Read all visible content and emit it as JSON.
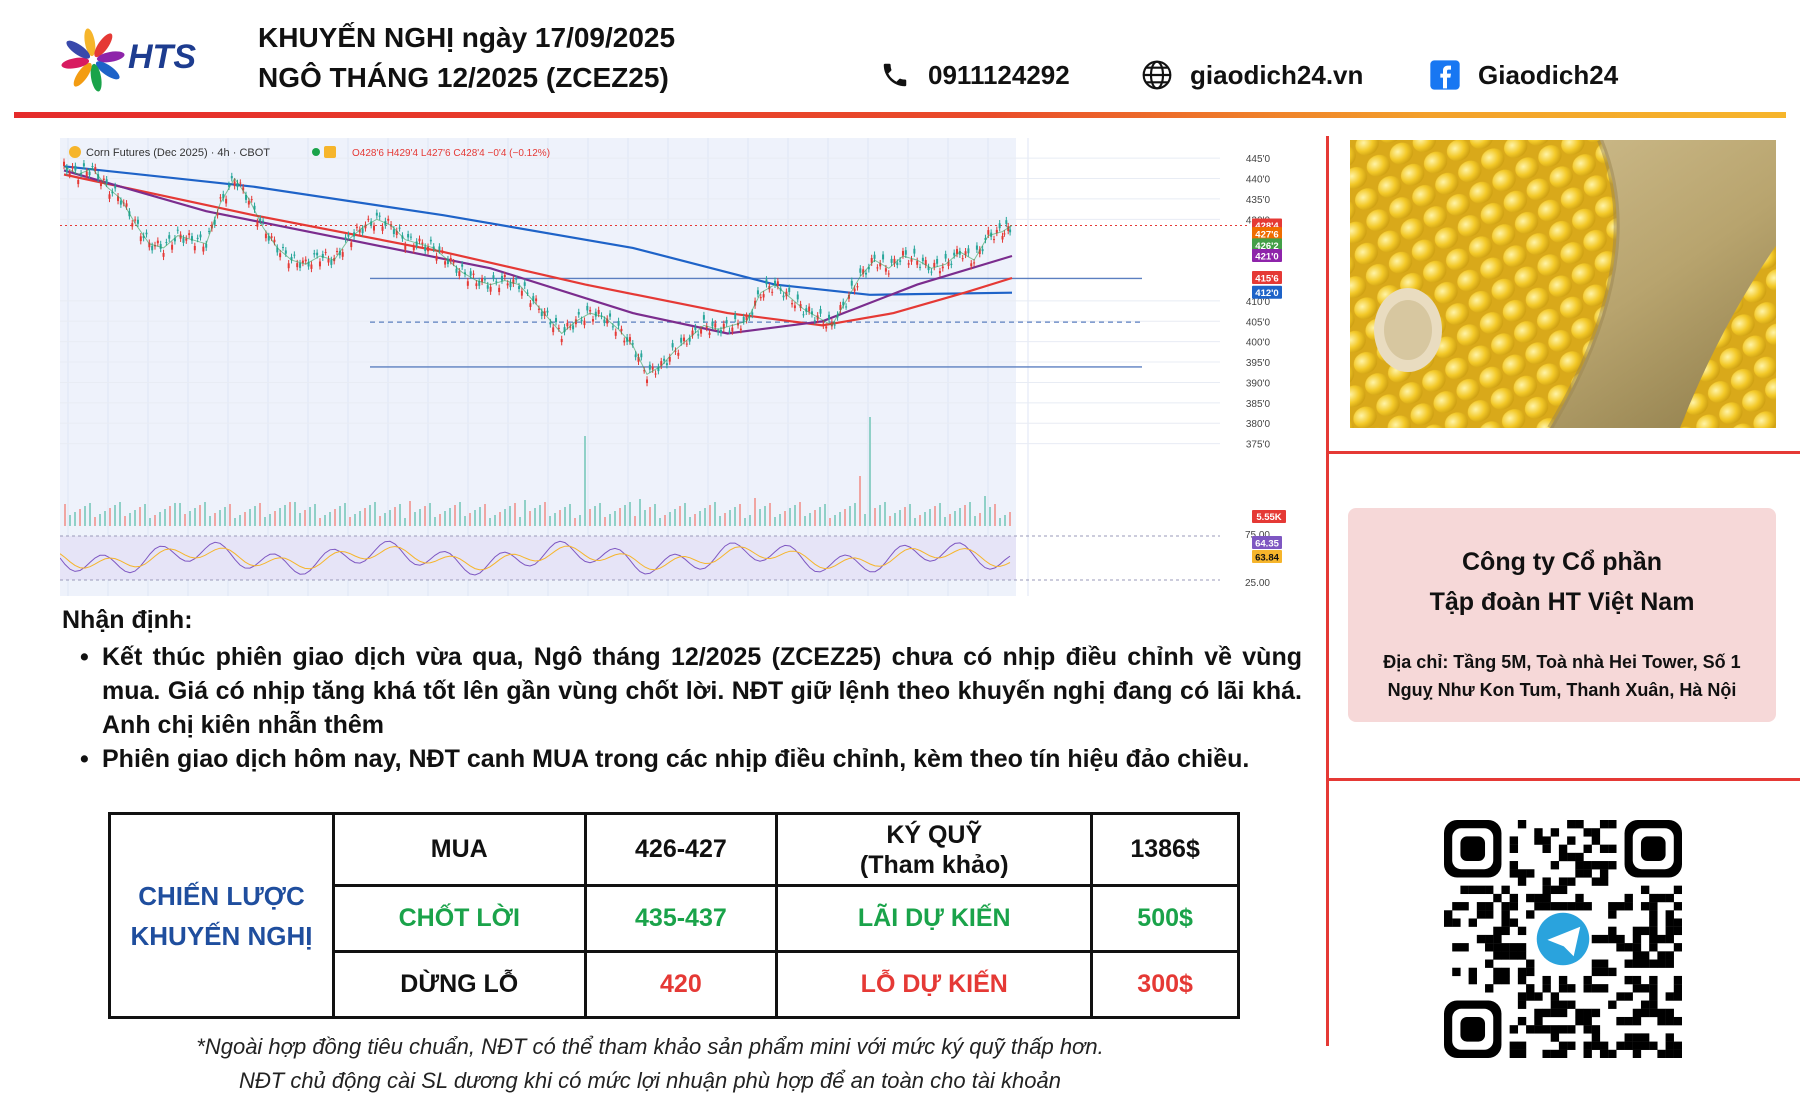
{
  "header": {
    "logo_text": "HTS",
    "title_line1": "KHUYẾN NGHỊ ngày 17/09/2025",
    "title_line2": "NGÔ THÁNG 12/2025 (ZCEZ25)",
    "phone": "0911124292",
    "website": "giaodich24.vn",
    "facebook": "Giaodich24"
  },
  "chart_data": {
    "type": "line",
    "title": "Corn Futures (Dec 2025) · 4h · CBOT",
    "ohlc_text": "O428'6 H429'4 L427'6 C428'4 −0'4 (−0.12%)",
    "ylim": [
      370,
      447
    ],
    "price_ticks": [
      "445'0",
      "440'0",
      "435'0",
      "430'0",
      "410'0",
      "405'0",
      "400'0",
      "395'0",
      "390'0",
      "385'0",
      "380'0",
      "375'0"
    ],
    "price_tick_values": [
      445,
      440,
      435,
      430,
      410,
      405,
      400,
      395,
      390,
      385,
      380,
      375
    ],
    "price_labels": [
      {
        "text": "428'4",
        "value": 428.5,
        "color": "#e53935"
      },
      {
        "text": "427'6",
        "value": 426.4,
        "color": "#ef6c00"
      },
      {
        "text": "426'2",
        "value": 423.6,
        "color": "#43a047"
      },
      {
        "text": "421'0",
        "value": 421.0,
        "color": "#8e24aa"
      },
      {
        "text": "415'6",
        "value": 415.6,
        "color": "#e53935"
      },
      {
        "text": "412'0",
        "value": 412.0,
        "color": "#1e63c8"
      }
    ],
    "horizontal_levels": [
      {
        "value": 415.5,
        "style": "solid"
      },
      {
        "value": 404.8,
        "style": "dashed"
      },
      {
        "value": 393.8,
        "style": "solid"
      }
    ],
    "price_path": [
      [
        0,
        443
      ],
      [
        3,
        441
      ],
      [
        6,
        442.5
      ],
      [
        9,
        438
      ],
      [
        12,
        435
      ],
      [
        15,
        429
      ],
      [
        18,
        424
      ],
      [
        21,
        423
      ],
      [
        24,
        426
      ],
      [
        27,
        425
      ],
      [
        30,
        424
      ],
      [
        33,
        434
      ],
      [
        36,
        440
      ],
      [
        39,
        435
      ],
      [
        42,
        428
      ],
      [
        45,
        423
      ],
      [
        48,
        420
      ],
      [
        51,
        419
      ],
      [
        54,
        421
      ],
      [
        57,
        420
      ],
      [
        60,
        425
      ],
      [
        63,
        428
      ],
      [
        66,
        430
      ],
      [
        69,
        428.5
      ],
      [
        72,
        425
      ],
      [
        75,
        424
      ],
      [
        78,
        423
      ],
      [
        81,
        420
      ],
      [
        84,
        417
      ],
      [
        87,
        415
      ],
      [
        90,
        414
      ],
      [
        93,
        415
      ],
      [
        96,
        414
      ],
      [
        99,
        410
      ],
      [
        102,
        406
      ],
      [
        105,
        402
      ],
      [
        108,
        405
      ],
      [
        111,
        407
      ],
      [
        114,
        406
      ],
      [
        117,
        403
      ],
      [
        120,
        399
      ],
      [
        123,
        392
      ],
      [
        126,
        394
      ],
      [
        129,
        398
      ],
      [
        132,
        401
      ],
      [
        135,
        404
      ],
      [
        138,
        403
      ],
      [
        141,
        404
      ],
      [
        144,
        405
      ],
      [
        147,
        412
      ],
      [
        150,
        414
      ],
      [
        153,
        411
      ],
      [
        156,
        408
      ],
      [
        159,
        406
      ],
      [
        162,
        404
      ],
      [
        165,
        410
      ],
      [
        168,
        416
      ],
      [
        171,
        420
      ],
      [
        174,
        418
      ],
      [
        177,
        421
      ],
      [
        180,
        420
      ],
      [
        183,
        418
      ],
      [
        186,
        419
      ],
      [
        189,
        422
      ],
      [
        192,
        420
      ],
      [
        195,
        426
      ],
      [
        198,
        427
      ],
      [
        200,
        428.5
      ]
    ],
    "ma_lines": [
      {
        "color": "#1e63c8",
        "values": [
          [
            0,
            443
          ],
          [
            40,
            438
          ],
          [
            80,
            431
          ],
          [
            120,
            423
          ],
          [
            150,
            414
          ],
          [
            170,
            411.5
          ],
          [
            200,
            412
          ]
        ]
      },
      {
        "color": "#e53935",
        "values": [
          [
            0,
            441
          ],
          [
            40,
            431
          ],
          [
            80,
            422
          ],
          [
            110,
            414
          ],
          [
            140,
            407
          ],
          [
            160,
            404
          ],
          [
            175,
            407
          ],
          [
            190,
            412
          ],
          [
            200,
            415.6
          ]
        ]
      },
      {
        "color": "#7b2d8e",
        "values": [
          [
            0,
            442
          ],
          [
            30,
            432
          ],
          [
            60,
            425
          ],
          [
            90,
            418
          ],
          [
            120,
            407
          ],
          [
            140,
            402
          ],
          [
            160,
            405
          ],
          [
            180,
            414
          ],
          [
            200,
            421
          ]
        ]
      }
    ],
    "volume_label": "5.55K",
    "rsi": {
      "labels": [
        "75.00",
        "25.00"
      ],
      "current_labels": [
        "64.35",
        "63.84"
      ]
    }
  },
  "analysis": {
    "heading": "Nhận định:",
    "bullets": [
      "Kết thúc phiên giao dịch vừa qua, Ngô tháng 12/2025 (ZCEZ25) chưa có nhịp điều chỉnh về vùng mua. Giá có nhịp tăng khá tốt lên gần vùng chốt lời. NĐT giữ lệnh theo khuyến nghị đang có lãi khá. Anh chị kiên nhẫn thêm",
      "Phiên giao dịch hôm nay, NĐT canh MUA trong các nhịp điều chỉnh, kèm theo tín hiệu đảo chiều."
    ]
  },
  "strategy": {
    "label_line1": "CHIẾN LƯỢC",
    "label_line2": "KHUYẾN NGHỊ",
    "rows": [
      {
        "action": "MUA",
        "price": "426-427",
        "metric_line1": "KÝ QUỸ",
        "metric_line2": "(Tham khảo)",
        "amount": "1386$"
      },
      {
        "action": "CHỐT LỜI",
        "price": "435-437",
        "metric_line1": "LÃI DỰ KIẾN",
        "metric_line2": "",
        "amount": "500$"
      },
      {
        "action": "DỪNG LỖ",
        "price": "420",
        "metric_line1": "LỖ DỰ KIẾN",
        "metric_line2": "",
        "amount": "300$"
      }
    ]
  },
  "footnote": {
    "line1": "*Ngoài hợp đồng tiêu chuẩn, NĐT có thể tham khảo sản phẩm mini với mức ký quỹ thấp hơn.",
    "line2": "NĐT chủ động cài SL dương khi có mức lợi nhuận phù hợp để an toàn cho tài khoản"
  },
  "company": {
    "name_line1": "Công ty Cổ phần",
    "name_line2": "Tập đoàn HT Việt Nam",
    "address": "Địa chỉ: Tầng 5M, Toà nhà Hei Tower, Số 1 Nguỵ Như Kon Tum, Thanh Xuân, Hà Nội"
  },
  "colors": {
    "accent_red": "#e53935",
    "accent_orange": "#f6b52b",
    "brand_blue": "#1d3c8f",
    "profit_green": "#1aa34a",
    "company_bg": "#f6d8d8"
  },
  "icons": {
    "phone": "phone-icon",
    "web": "globe-icon",
    "social": "facebook-icon",
    "qr": "telegram-qr-icon"
  }
}
